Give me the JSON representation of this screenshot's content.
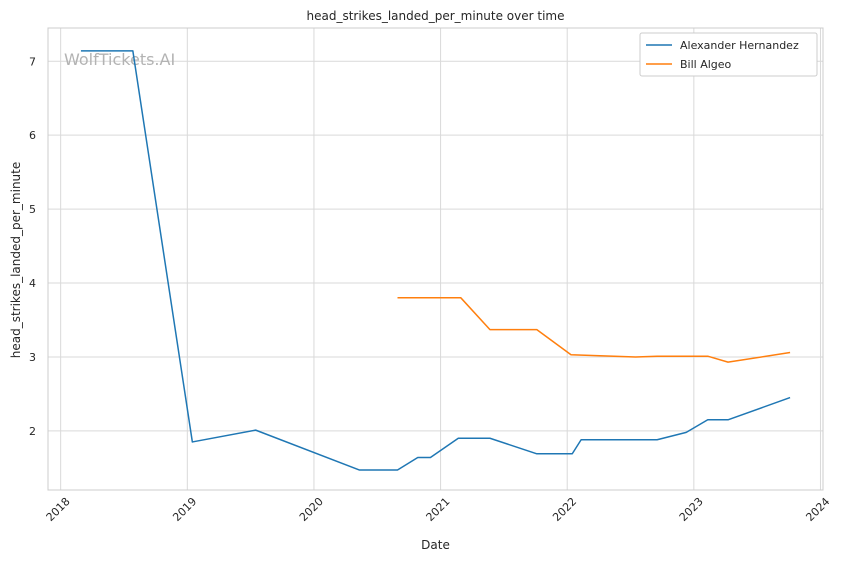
{
  "chart_data": {
    "type": "line",
    "title": "head_strikes_landed_per_minute over time",
    "xlabel": "Date",
    "ylabel": "head_strikes_landed_per_minute",
    "watermark": "WolfTickets.AI",
    "x_ticks": [
      "2018",
      "2019",
      "2020",
      "2021",
      "2022",
      "2023",
      "2024"
    ],
    "y_ticks": [
      "2",
      "3",
      "4",
      "5",
      "6",
      "7"
    ],
    "xlim": [
      2017.9,
      2024.02
    ],
    "ylim": [
      1.2,
      7.45
    ],
    "grid": true,
    "legend_position": "top-right",
    "series": [
      {
        "name": "Alexander Hernandez",
        "color": "#1f77b4",
        "points": [
          [
            2018.16,
            7.14
          ],
          [
            2018.57,
            7.14
          ],
          [
            2019.04,
            1.85
          ],
          [
            2019.54,
            2.01
          ],
          [
            2020.36,
            1.47
          ],
          [
            2020.66,
            1.47
          ],
          [
            2020.82,
            1.64
          ],
          [
            2020.92,
            1.64
          ],
          [
            2021.14,
            1.9
          ],
          [
            2021.39,
            1.9
          ],
          [
            2021.76,
            1.69
          ],
          [
            2022.04,
            1.69
          ],
          [
            2022.11,
            1.88
          ],
          [
            2022.71,
            1.88
          ],
          [
            2022.94,
            1.98
          ],
          [
            2023.11,
            2.15
          ],
          [
            2023.27,
            2.15
          ],
          [
            2023.76,
            2.45
          ]
        ]
      },
      {
        "name": "Bill Algeo",
        "color": "#ff7f0e",
        "points": [
          [
            2020.66,
            3.8
          ],
          [
            2021.16,
            3.8
          ],
          [
            2021.39,
            3.37
          ],
          [
            2021.76,
            3.37
          ],
          [
            2022.03,
            3.03
          ],
          [
            2022.54,
            3.0
          ],
          [
            2022.71,
            3.01
          ],
          [
            2023.11,
            3.01
          ],
          [
            2023.27,
            2.93
          ],
          [
            2023.76,
            3.06
          ]
        ]
      }
    ]
  }
}
